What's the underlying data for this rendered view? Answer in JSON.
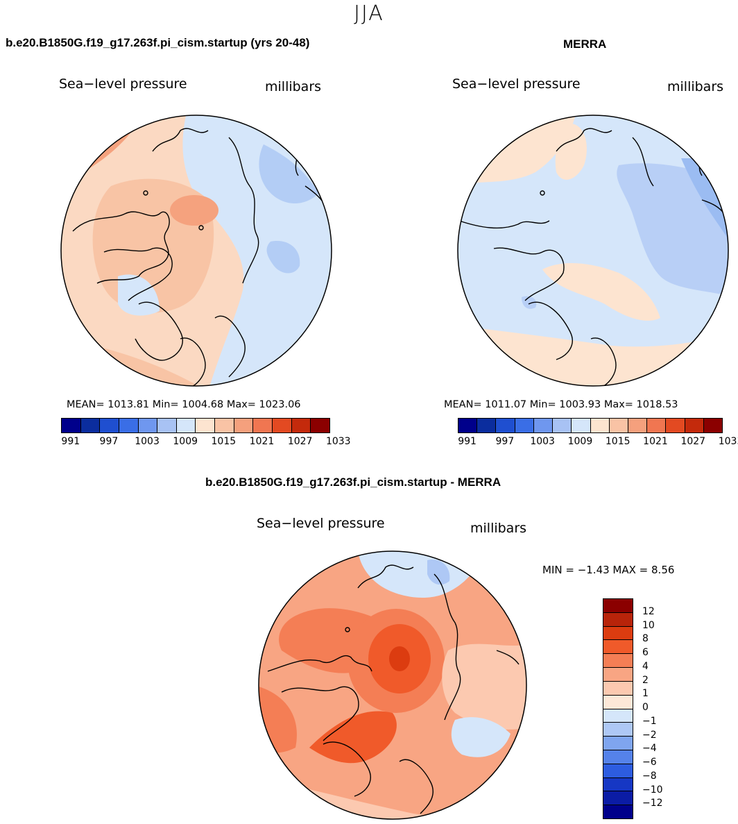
{
  "title": "JJA",
  "panels": {
    "model": {
      "title": "b.e20.B1850G.f19_g17.263f.pi_cism.startup (yrs 20-48)",
      "variable": "Sea−level pressure",
      "units": "millibars",
      "stats": "MEAN=  1013.81   Min=  1004.68   Max=  1023.06"
    },
    "obs": {
      "title": "MERRA",
      "variable": "Sea−level pressure",
      "units": "millibars",
      "stats": "MEAN=  1011.07   Min=  1003.93   Max=  1018.53"
    },
    "diff": {
      "title": "b.e20.B1850G.f19_g17.263f.pi_cism.startup - MERRA",
      "variable": "Sea−level pressure",
      "units": "millibars",
      "stats": "MIN =   −1.43  MAX =     8.56"
    }
  },
  "abs_colorbar": {
    "colors": [
      "#00008b",
      "#0b2d9e",
      "#1f4fd0",
      "#3a6ee6",
      "#6f97ef",
      "#a8c2f4",
      "#d5e6fa",
      "#fde4d0",
      "#f9c3a5",
      "#f5a07d",
      "#f07651",
      "#e34a22",
      "#c42a0c",
      "#8b0000"
    ],
    "labels": [
      "991",
      "997",
      "1003",
      "1009",
      "1015",
      "1021",
      "1027",
      "1033"
    ]
  },
  "diff_colorbar": {
    "colors": [
      "#8b0000",
      "#b8240a",
      "#dc3c10",
      "#f05a2a",
      "#f47e55",
      "#f8a583",
      "#fcc9b0",
      "#fde8d8",
      "#d5e6fa",
      "#aec8f5",
      "#7fa5ef",
      "#5582ea",
      "#2d5ce0",
      "#1637c4",
      "#0b1ca5",
      "#00008b"
    ],
    "labels": [
      "12",
      "10",
      "8",
      "6",
      "4",
      "2",
      "1",
      "0",
      "−1",
      "−2",
      "−4",
      "−6",
      "−8",
      "−10",
      "−12"
    ]
  },
  "map_fills": {
    "model": {
      "base": "#fbd9c2",
      "mid": "#f8c4a5",
      "warm": "#f5a27e",
      "strong": "#ee6b45",
      "cool": "#d5e6fa",
      "cool2": "#b3cdf5",
      "cool3": "#8fb1ef"
    },
    "obs": {
      "base": "#d5e6fa",
      "mid": "#fde4d0",
      "warm": "#f9c3a5",
      "strong": "#f5a07d",
      "cool": "#b8cff6",
      "cool2": "#9bbcf2"
    },
    "diff": {
      "base": "#f8a583",
      "mid": "#f47e55",
      "warm": "#f05a2a",
      "strong": "#dc3c10",
      "light": "#fcc9b0",
      "pale": "#fde8d8",
      "cool": "#d5e6fa",
      "cool2": "#aec8f5"
    }
  }
}
